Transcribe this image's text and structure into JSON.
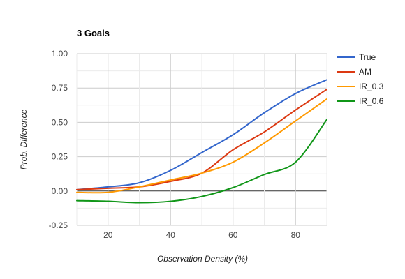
{
  "chart_data": {
    "type": "line",
    "title": "3 Goals",
    "xlabel": "Observation Density (%)",
    "ylabel": "Prob. Difference",
    "xlim": [
      10,
      90
    ],
    "ylim": [
      -0.25,
      1.0
    ],
    "x_ticks": [
      20,
      40,
      60,
      80
    ],
    "x_tick_labels": [
      "20",
      "40",
      "60",
      "80"
    ],
    "y_ticks": [
      -0.25,
      0,
      0.25,
      0.5,
      0.75,
      1.0
    ],
    "y_tick_labels": [
      "-0.25",
      "0.00",
      "0.25",
      "0.50",
      "0.75",
      "1.00"
    ],
    "grid": true,
    "legend_position": "right",
    "x": [
      10,
      20,
      30,
      40,
      50,
      60,
      70,
      80,
      90
    ],
    "series": [
      {
        "name": "True",
        "color": "#3366cc",
        "values": [
          0.01,
          0.03,
          0.06,
          0.15,
          0.28,
          0.41,
          0.57,
          0.71,
          0.81
        ]
      },
      {
        "name": "AM",
        "color": "#dc3912",
        "values": [
          0.01,
          0.02,
          0.03,
          0.07,
          0.13,
          0.3,
          0.43,
          0.59,
          0.74
        ]
      },
      {
        "name": "IR_0.3",
        "color": "#ff9900",
        "values": [
          -0.01,
          -0.01,
          0.03,
          0.08,
          0.13,
          0.21,
          0.35,
          0.51,
          0.67
        ]
      },
      {
        "name": "IR_0.6",
        "color": "#109618",
        "values": [
          -0.07,
          -0.075,
          -0.085,
          -0.075,
          -0.04,
          0.025,
          0.12,
          0.21,
          0.52
        ]
      }
    ]
  }
}
